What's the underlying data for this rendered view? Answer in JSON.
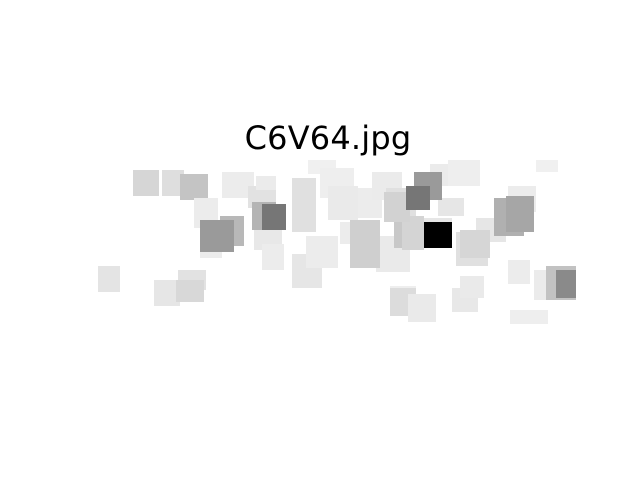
{
  "figure": {
    "title": "C6V64.jpg"
  }
}
